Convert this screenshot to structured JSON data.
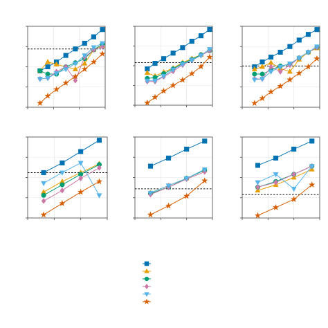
{
  "chart_data": [
    {
      "type": "line",
      "log_x": true,
      "grid": true,
      "xlim": [
        1,
        1000
      ],
      "ylim": [
        0,
        100
      ],
      "xticks": [
        1,
        10,
        100,
        1000
      ],
      "yticks": [
        0,
        25,
        50,
        75,
        100
      ],
      "x": [
        3,
        6,
        13,
        30,
        70,
        160,
        360,
        780
      ],
      "reference_line": 72,
      "series": [
        {
          "color": "#0072b2",
          "marker": "square",
          "values": [
            45,
            50,
            56,
            64,
            72,
            79,
            87,
            96
          ]
        },
        {
          "color": "#e69f00",
          "marker": "triangle-up",
          "values": [
            45,
            56,
            53,
            50,
            47,
            54,
            71,
            76
          ]
        },
        {
          "color": "#009e73",
          "marker": "circle",
          "values": [
            45,
            41,
            41,
            50,
            55,
            60,
            71,
            78
          ]
        },
        {
          "color": "#cc79a7",
          "marker": "diamond",
          "values": [
            35,
            36,
            44,
            50,
            33,
            62,
            71,
            75
          ]
        },
        {
          "color": "#56b4e9",
          "marker": "triangle-down",
          "values": [
            35,
            36,
            42,
            47,
            54,
            64,
            74,
            79
          ]
        },
        {
          "color": "#d55e00",
          "marker": "star",
          "values": [
            5,
            14,
            22,
            30,
            38,
            47,
            56,
            66
          ]
        }
      ]
    },
    {
      "type": "line",
      "log_x": true,
      "grid": true,
      "xlim": [
        1,
        1000
      ],
      "ylim": [
        0,
        100
      ],
      "xticks": [
        1,
        10,
        100,
        1000
      ],
      "yticks": [
        0,
        25,
        50,
        75,
        100
      ],
      "x": [
        3,
        6,
        13,
        30,
        70,
        160,
        360,
        780
      ],
      "reference_line": 54,
      "series": [
        {
          "color": "#0072b2",
          "marker": "square",
          "values": [
            46,
            53,
            59,
            66,
            73,
            81,
            88,
            96
          ]
        },
        {
          "color": "#e69f00",
          "marker": "triangle-up",
          "values": [
            41,
            37,
            42,
            47,
            54,
            59,
            64,
            70
          ]
        },
        {
          "color": "#009e73",
          "marker": "circle",
          "values": [
            34,
            35,
            40,
            46,
            53,
            58,
            64,
            69
          ]
        },
        {
          "color": "#cc79a7",
          "marker": "diamond",
          "values": [
            30,
            30,
            36,
            43,
            51,
            57,
            63,
            69
          ]
        },
        {
          "color": "#56b4e9",
          "marker": "triangle-down",
          "values": [
            31,
            31,
            37,
            45,
            52,
            57,
            63,
            71
          ]
        },
        {
          "color": "#d55e00",
          "marker": "star",
          "values": [
            3,
            10,
            18,
            25,
            32,
            40,
            49,
            61
          ]
        }
      ]
    },
    {
      "type": "line",
      "log_x": true,
      "grid": true,
      "xlim": [
        1,
        1000
      ],
      "ylim": [
        0,
        100
      ],
      "xticks": [
        1,
        10,
        100,
        1000
      ],
      "yticks": [
        0,
        25,
        50,
        75,
        100
      ],
      "x": [
        3,
        6,
        13,
        30,
        70,
        160,
        360,
        780
      ],
      "reference_line": 51,
      "series": [
        {
          "color": "#0072b2",
          "marker": "square",
          "values": [
            50,
            56,
            62,
            68,
            75,
            83,
            90,
            96
          ]
        },
        {
          "color": "#e69f00",
          "marker": "triangle-up",
          "values": [
            47,
            50,
            55,
            48,
            44,
            59,
            68,
            73
          ]
        },
        {
          "color": "#009e73",
          "marker": "circle",
          "values": [
            41,
            41,
            46,
            51,
            53,
            61,
            68,
            74
          ]
        },
        {
          "color": "#cc79a7",
          "marker": "diamond",
          "values": [
            35,
            35,
            50,
            44,
            52,
            61,
            68,
            74
          ]
        },
        {
          "color": "#56b4e9",
          "marker": "triangle-down",
          "values": [
            34,
            35,
            44,
            50,
            54,
            61,
            68,
            75
          ]
        },
        {
          "color": "#d55e00",
          "marker": "star",
          "values": [
            5,
            11,
            19,
            26,
            34,
            42,
            50,
            60
          ]
        }
      ]
    },
    {
      "type": "line",
      "log_x": true,
      "grid": true,
      "xlim": [
        1,
        1000
      ],
      "ylim": [
        0,
        100
      ],
      "xticks": [
        1,
        10,
        100,
        1000
      ],
      "yticks": [
        0,
        25,
        50,
        75,
        100
      ],
      "x": [
        4,
        20,
        100,
        500
      ],
      "reference_line": 56,
      "series": [
        {
          "color": "#0072b2",
          "marker": "square",
          "values": [
            56,
            68,
            82,
            96
          ]
        },
        {
          "color": "#e69f00",
          "marker": "triangle-up",
          "values": [
            32,
            45,
            56,
            67
          ]
        },
        {
          "color": "#009e73",
          "marker": "circle",
          "values": [
            28,
            41,
            54,
            66
          ]
        },
        {
          "color": "#cc79a7",
          "marker": "diamond",
          "values": [
            21,
            34,
            49,
            62
          ]
        },
        {
          "color": "#56b4e9",
          "marker": "triangle-down",
          "values": [
            43,
            56,
            68,
            28
          ]
        },
        {
          "color": "#d55e00",
          "marker": "star",
          "values": [
            4,
            18,
            32,
            45
          ]
        }
      ]
    },
    {
      "type": "line",
      "log_x": true,
      "grid": true,
      "xlim": [
        1,
        1000
      ],
      "ylim": [
        0,
        100
      ],
      "xticks": [
        1,
        10,
        100,
        1000
      ],
      "yticks": [
        0,
        25,
        50,
        75,
        100
      ],
      "x": [
        4,
        20,
        100,
        500
      ],
      "reference_line": 36,
      "series": [
        {
          "color": "#0072b2",
          "marker": "square",
          "values": [
            64,
            74,
            85,
            95
          ]
        },
        {
          "color": "#e69f00",
          "marker": "triangle-up",
          "values": [
            31,
            40,
            49,
            59
          ]
        },
        {
          "color": "#009e73",
          "marker": "circle",
          "values": [
            30,
            38,
            49,
            59
          ]
        },
        {
          "color": "#cc79a7",
          "marker": "diamond",
          "values": [
            29,
            38,
            48,
            57
          ]
        },
        {
          "color": "#56b4e9",
          "marker": "triangle-down",
          "values": [
            31,
            40,
            49,
            60
          ]
        },
        {
          "color": "#d55e00",
          "marker": "star",
          "values": [
            4,
            15,
            27,
            46
          ]
        }
      ]
    },
    {
      "type": "line",
      "log_x": true,
      "grid": true,
      "xlim": [
        1,
        1000
      ],
      "ylim": [
        0,
        100
      ],
      "xticks": [
        1,
        10,
        100,
        1000
      ],
      "yticks": [
        0,
        25,
        50,
        75,
        100
      ],
      "x": [
        4,
        20,
        100,
        500
      ],
      "reference_line": 29,
      "series": [
        {
          "color": "#0072b2",
          "marker": "square",
          "values": [
            65,
            74,
            85,
            95
          ]
        },
        {
          "color": "#e69f00",
          "marker": "triangle-up",
          "values": [
            34,
            41,
            50,
            60
          ]
        },
        {
          "color": "#009e73",
          "marker": "circle",
          "values": [
            38,
            45,
            54,
            64
          ]
        },
        {
          "color": "#cc79a7",
          "marker": "diamond",
          "values": [
            38,
            44,
            54,
            64
          ]
        },
        {
          "color": "#56b4e9",
          "marker": "triangle-down",
          "values": [
            44,
            54,
            36,
            64
          ]
        },
        {
          "color": "#d55e00",
          "marker": "star",
          "values": [
            3,
            13,
            23,
            41
          ]
        }
      ]
    }
  ]
}
